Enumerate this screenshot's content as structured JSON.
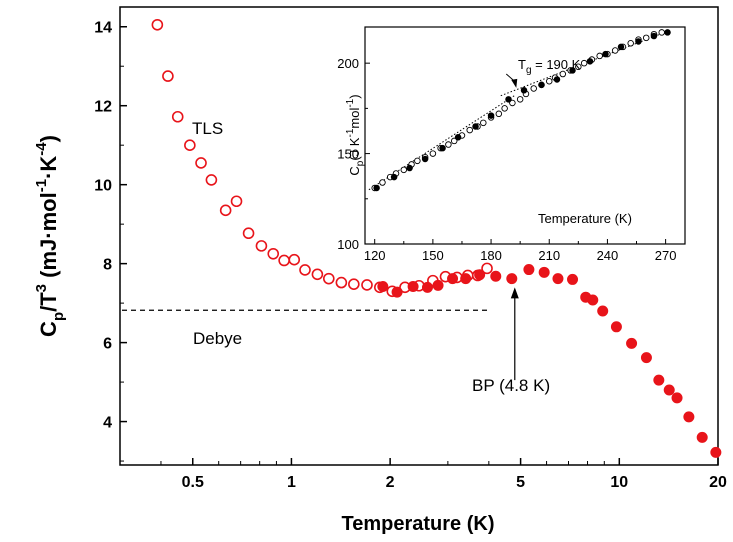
{
  "chart_data": [
    {
      "type": "scatter",
      "xscale": "log",
      "xlim": [
        0.3,
        20
      ],
      "ylim": [
        2.9,
        14.5
      ],
      "x_ticks": [
        0.5,
        1,
        2,
        5,
        10,
        20
      ],
      "x_tick_labels": [
        "0.5",
        "1",
        "2",
        "5",
        "10",
        "20"
      ],
      "y_ticks": [
        4,
        6,
        8,
        10,
        12,
        14
      ],
      "y_tick_labels": [
        "4",
        "6",
        "8",
        "10",
        "12",
        "14"
      ],
      "xlabel": "Temperature (K)",
      "ylabel": {
        "base": "C",
        "sub1": "p",
        "mid": "/T",
        "sup1": "3",
        "units": " (mJ·mol",
        "sup2": "-1",
        "units2": "·K",
        "sup3": "-4",
        "close": ")"
      },
      "series": [
        {
          "marker": "open-circle",
          "color": "#e8141a",
          "x": [
            0.39,
            0.42,
            0.45,
            0.49,
            0.53,
            0.57,
            0.63,
            0.68,
            0.74,
            0.81,
            0.88,
            0.95,
            1.02,
            1.1,
            1.2,
            1.3,
            1.42,
            1.55,
            1.7,
            1.86,
            2.03,
            2.22,
            2.45,
            2.7,
            2.95,
            3.2,
            3.45,
            3.7,
            3.95
          ],
          "y": [
            14.05,
            12.75,
            11.72,
            11.0,
            10.55,
            10.12,
            9.35,
            9.58,
            8.77,
            8.45,
            8.25,
            8.08,
            8.1,
            7.84,
            7.73,
            7.62,
            7.52,
            7.48,
            7.46,
            7.4,
            7.3,
            7.4,
            7.44,
            7.57,
            7.67,
            7.65,
            7.7,
            7.7,
            7.88
          ]
        },
        {
          "marker": "filled-circle",
          "color": "#e8141a",
          "x": [
            1.9,
            2.1,
            2.35,
            2.6,
            2.8,
            3.1,
            3.4,
            3.75,
            4.2,
            4.7,
            5.3,
            5.9,
            6.5,
            7.2,
            7.9,
            8.3,
            8.9,
            9.8,
            10.9,
            12.1,
            13.2,
            14.2,
            15.0,
            16.3,
            17.9,
            19.7
          ],
          "y": [
            7.42,
            7.28,
            7.42,
            7.4,
            7.45,
            7.62,
            7.62,
            7.72,
            7.68,
            7.62,
            7.85,
            7.78,
            7.62,
            7.6,
            7.15,
            7.08,
            6.8,
            6.4,
            5.98,
            5.62,
            5.05,
            4.8,
            4.6,
            4.12,
            3.6,
            3.22
          ]
        }
      ],
      "reference_line": {
        "label": "Debye",
        "y": 6.82,
        "x_start": 0.3,
        "x_end": 4.0,
        "style": "dashed"
      },
      "annotations": [
        {
          "text": "TLS",
          "x": 0.7,
          "y": 11.4
        },
        {
          "text": "BP (4.8 K)",
          "arrow_x": 4.8,
          "arrow_y_start": 5.05,
          "arrow_y_end": 7.6
        }
      ],
      "legend": "none",
      "grid": false
    },
    {
      "type": "scatter",
      "inset": true,
      "xlim": [
        115,
        280
      ],
      "ylim": [
        100,
        220
      ],
      "x_ticks": [
        120,
        150,
        180,
        210,
        240,
        270
      ],
      "x_tick_labels": [
        "120",
        "150",
        "180",
        "210",
        "240",
        "270"
      ],
      "y_ticks": [
        100,
        150,
        200
      ],
      "y_tick_labels": [
        "100",
        "150",
        "200"
      ],
      "xlabel": "Temperature (K)",
      "ylabel": {
        "base": "C",
        "sub1": "p",
        "units": "(J K",
        "sup1": "-1",
        "units2": "mol",
        "sup2": "-1",
        "close": ")"
      },
      "annotation": {
        "text_base": "T",
        "text_sub": "g",
        "text_rest": " = 190 K",
        "arrow_x": 193,
        "arrow_y": 183
      },
      "series": [
        {
          "marker": "open-circle",
          "color": "#000000",
          "x": [
            120,
            124,
            128,
            131,
            135,
            139,
            142,
            146,
            150,
            154,
            158,
            161,
            165,
            169,
            173,
            176,
            180,
            184,
            187,
            191,
            195,
            198,
            202,
            206,
            210,
            213,
            217,
            221,
            225,
            228,
            232,
            236,
            240,
            244,
            248,
            252,
            256,
            260,
            264,
            268
          ],
          "y": [
            131,
            134,
            137,
            139,
            141,
            144,
            146,
            148,
            150,
            153,
            155,
            157,
            160,
            163,
            165,
            167,
            170,
            172,
            175,
            178,
            180,
            183,
            186,
            188,
            190,
            192,
            194,
            196,
            198,
            200,
            202,
            204,
            205,
            207,
            209,
            211,
            213,
            214,
            216,
            217
          ]
        },
        {
          "marker": "filled-circle",
          "color": "#000000",
          "x": [
            121,
            130,
            138,
            146,
            155,
            163,
            172,
            180,
            189,
            197,
            206,
            214,
            222,
            231,
            239,
            247,
            256,
            264,
            271
          ],
          "y": [
            131,
            137,
            142,
            147,
            153,
            159,
            165,
            171,
            180,
            185,
            188,
            191,
            196,
            201,
            205,
            209,
            212,
            215,
            217
          ]
        }
      ],
      "fit_lines": [
        {
          "x": [
            117,
            192
          ],
          "y": [
            130,
            182
          ]
        },
        {
          "x": [
            185,
            272
          ],
          "y": [
            182,
            218
          ]
        }
      ]
    }
  ]
}
